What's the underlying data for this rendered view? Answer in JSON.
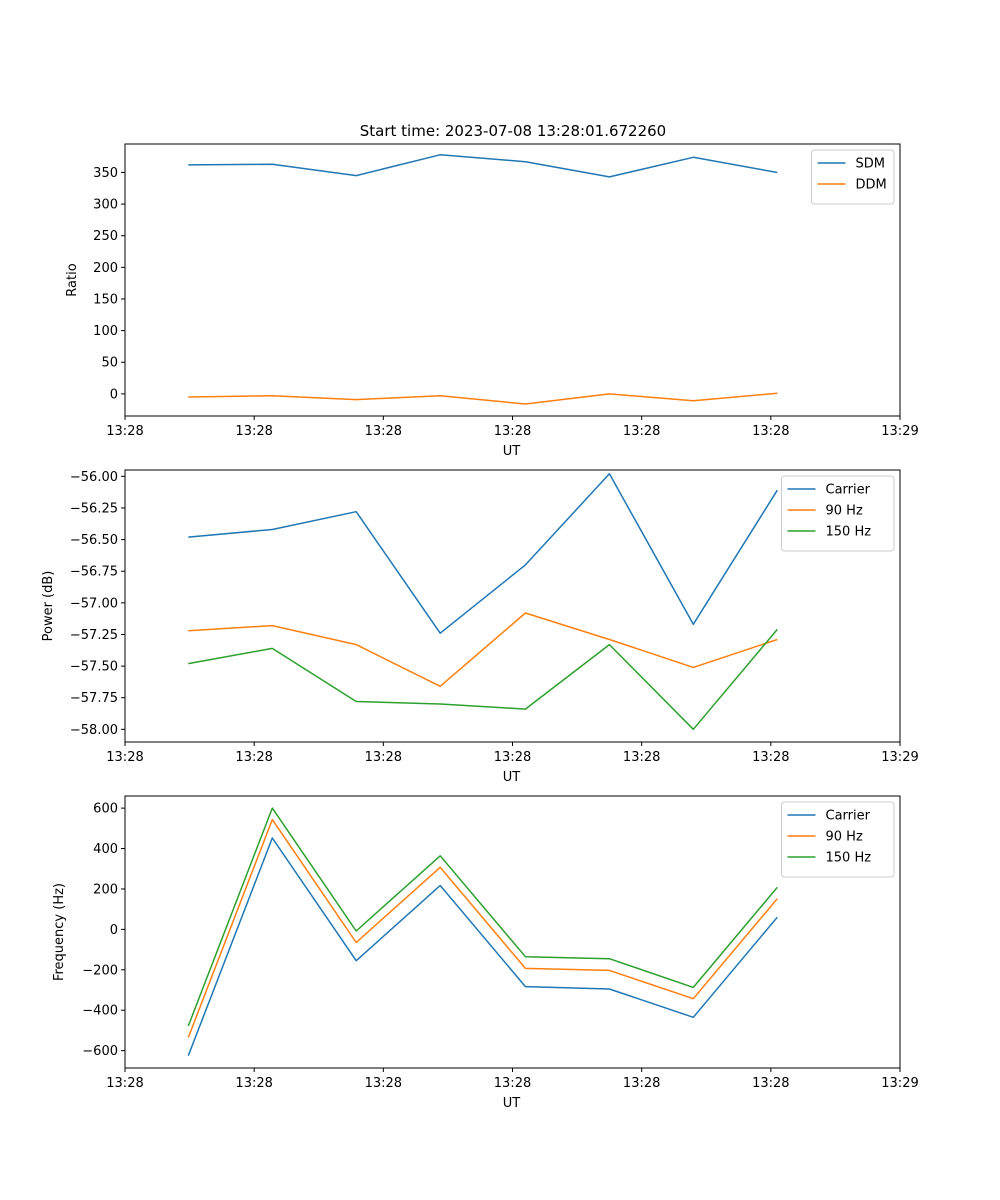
{
  "figure_title": "Start time: 2023-07-08 13:28:01.672260",
  "colors": {
    "blue": "#1f77b4",
    "orange": "#ff7f0e",
    "green": "#2ca02c"
  },
  "chart_data": [
    {
      "type": "line",
      "title": "Start time: 2023-07-08 13:28:01.672260",
      "xlabel": "UT",
      "ylabel": "Ratio",
      "xlim": [
        0,
        6
      ],
      "ylim": [
        -35,
        395
      ],
      "x_ticks": [
        0,
        1,
        2,
        3,
        4,
        5,
        6
      ],
      "x_tick_labels": [
        "13:28",
        "13:28",
        "13:28",
        "13:28",
        "13:28",
        "13:28",
        "13:29"
      ],
      "y_ticks": [
        0,
        50,
        100,
        150,
        200,
        250,
        300,
        350
      ],
      "y_tick_labels": [
        "0",
        "50",
        "100",
        "150",
        "200",
        "250",
        "300",
        "350"
      ],
      "x": [
        0.49,
        1.14,
        1.79,
        2.44,
        3.1,
        3.75,
        4.4,
        5.05
      ],
      "series": [
        {
          "name": "SDM",
          "color": "#1f77b4",
          "values": [
            362,
            363,
            345,
            378,
            367,
            343,
            374,
            350
          ]
        },
        {
          "name": "DDM",
          "color": "#ff7f0e",
          "values": [
            -5,
            -3,
            -9,
            -3,
            -16,
            0,
            -11,
            1
          ]
        }
      ],
      "legend": "top-right"
    },
    {
      "type": "line",
      "xlabel": "UT",
      "ylabel": "Power (dB)",
      "xlim": [
        0,
        6
      ],
      "ylim": [
        -58.1,
        -55.95
      ],
      "x_ticks": [
        0,
        1,
        2,
        3,
        4,
        5,
        6
      ],
      "x_tick_labels": [
        "13:28",
        "13:28",
        "13:28",
        "13:28",
        "13:28",
        "13:28",
        "13:29"
      ],
      "y_ticks": [
        -58.0,
        -57.75,
        -57.5,
        -57.25,
        -57.0,
        -56.75,
        -56.5,
        -56.25,
        -56.0
      ],
      "y_tick_labels": [
        "−58.00",
        "−57.75",
        "−57.50",
        "−57.25",
        "−57.00",
        "−56.75",
        "−56.50",
        "−56.25",
        "−56.00"
      ],
      "x": [
        0.49,
        1.14,
        1.79,
        2.44,
        3.1,
        3.75,
        4.4,
        5.05
      ],
      "series": [
        {
          "name": "Carrier",
          "color": "#1f77b4",
          "values": [
            -56.48,
            -56.42,
            -56.28,
            -57.24,
            -56.7,
            -55.98,
            -57.17,
            -56.11
          ]
        },
        {
          "name": "90 Hz",
          "color": "#ff7f0e",
          "values": [
            -57.22,
            -57.18,
            -57.33,
            -57.66,
            -57.08,
            -57.29,
            -57.51,
            -57.29
          ]
        },
        {
          "name": "150 Hz",
          "color": "#2ca02c",
          "values": [
            -57.48,
            -57.36,
            -57.78,
            -57.8,
            -57.84,
            -57.33,
            -58.0,
            -57.21
          ]
        }
      ],
      "legend": "top-right"
    },
    {
      "type": "line",
      "xlabel": "UT",
      "ylabel": "Frequency (Hz)",
      "xlim": [
        0,
        6
      ],
      "ylim": [
        -686,
        660
      ],
      "x_ticks": [
        0,
        1,
        2,
        3,
        4,
        5,
        6
      ],
      "x_tick_labels": [
        "13:28",
        "13:28",
        "13:28",
        "13:28",
        "13:28",
        "13:28",
        "13:29"
      ],
      "y_ticks": [
        -600,
        -400,
        -200,
        0,
        200,
        400,
        600
      ],
      "y_tick_labels": [
        "−600",
        "−400",
        "−200",
        "0",
        "200",
        "400",
        "600"
      ],
      "x": [
        0.49,
        1.14,
        1.79,
        2.44,
        3.1,
        3.75,
        4.4,
        5.05
      ],
      "series": [
        {
          "name": "Carrier",
          "color": "#1f77b4",
          "values": [
            -625,
            452,
            -155,
            217,
            -283,
            -295,
            -435,
            60
          ]
        },
        {
          "name": "90 Hz",
          "color": "#ff7f0e",
          "values": [
            -535,
            543,
            -65,
            307,
            -193,
            -203,
            -343,
            152
          ]
        },
        {
          "name": "150 Hz",
          "color": "#2ca02c",
          "values": [
            -478,
            600,
            -8,
            364,
            -135,
            -145,
            -287,
            208
          ]
        }
      ],
      "legend": "top-right"
    }
  ]
}
